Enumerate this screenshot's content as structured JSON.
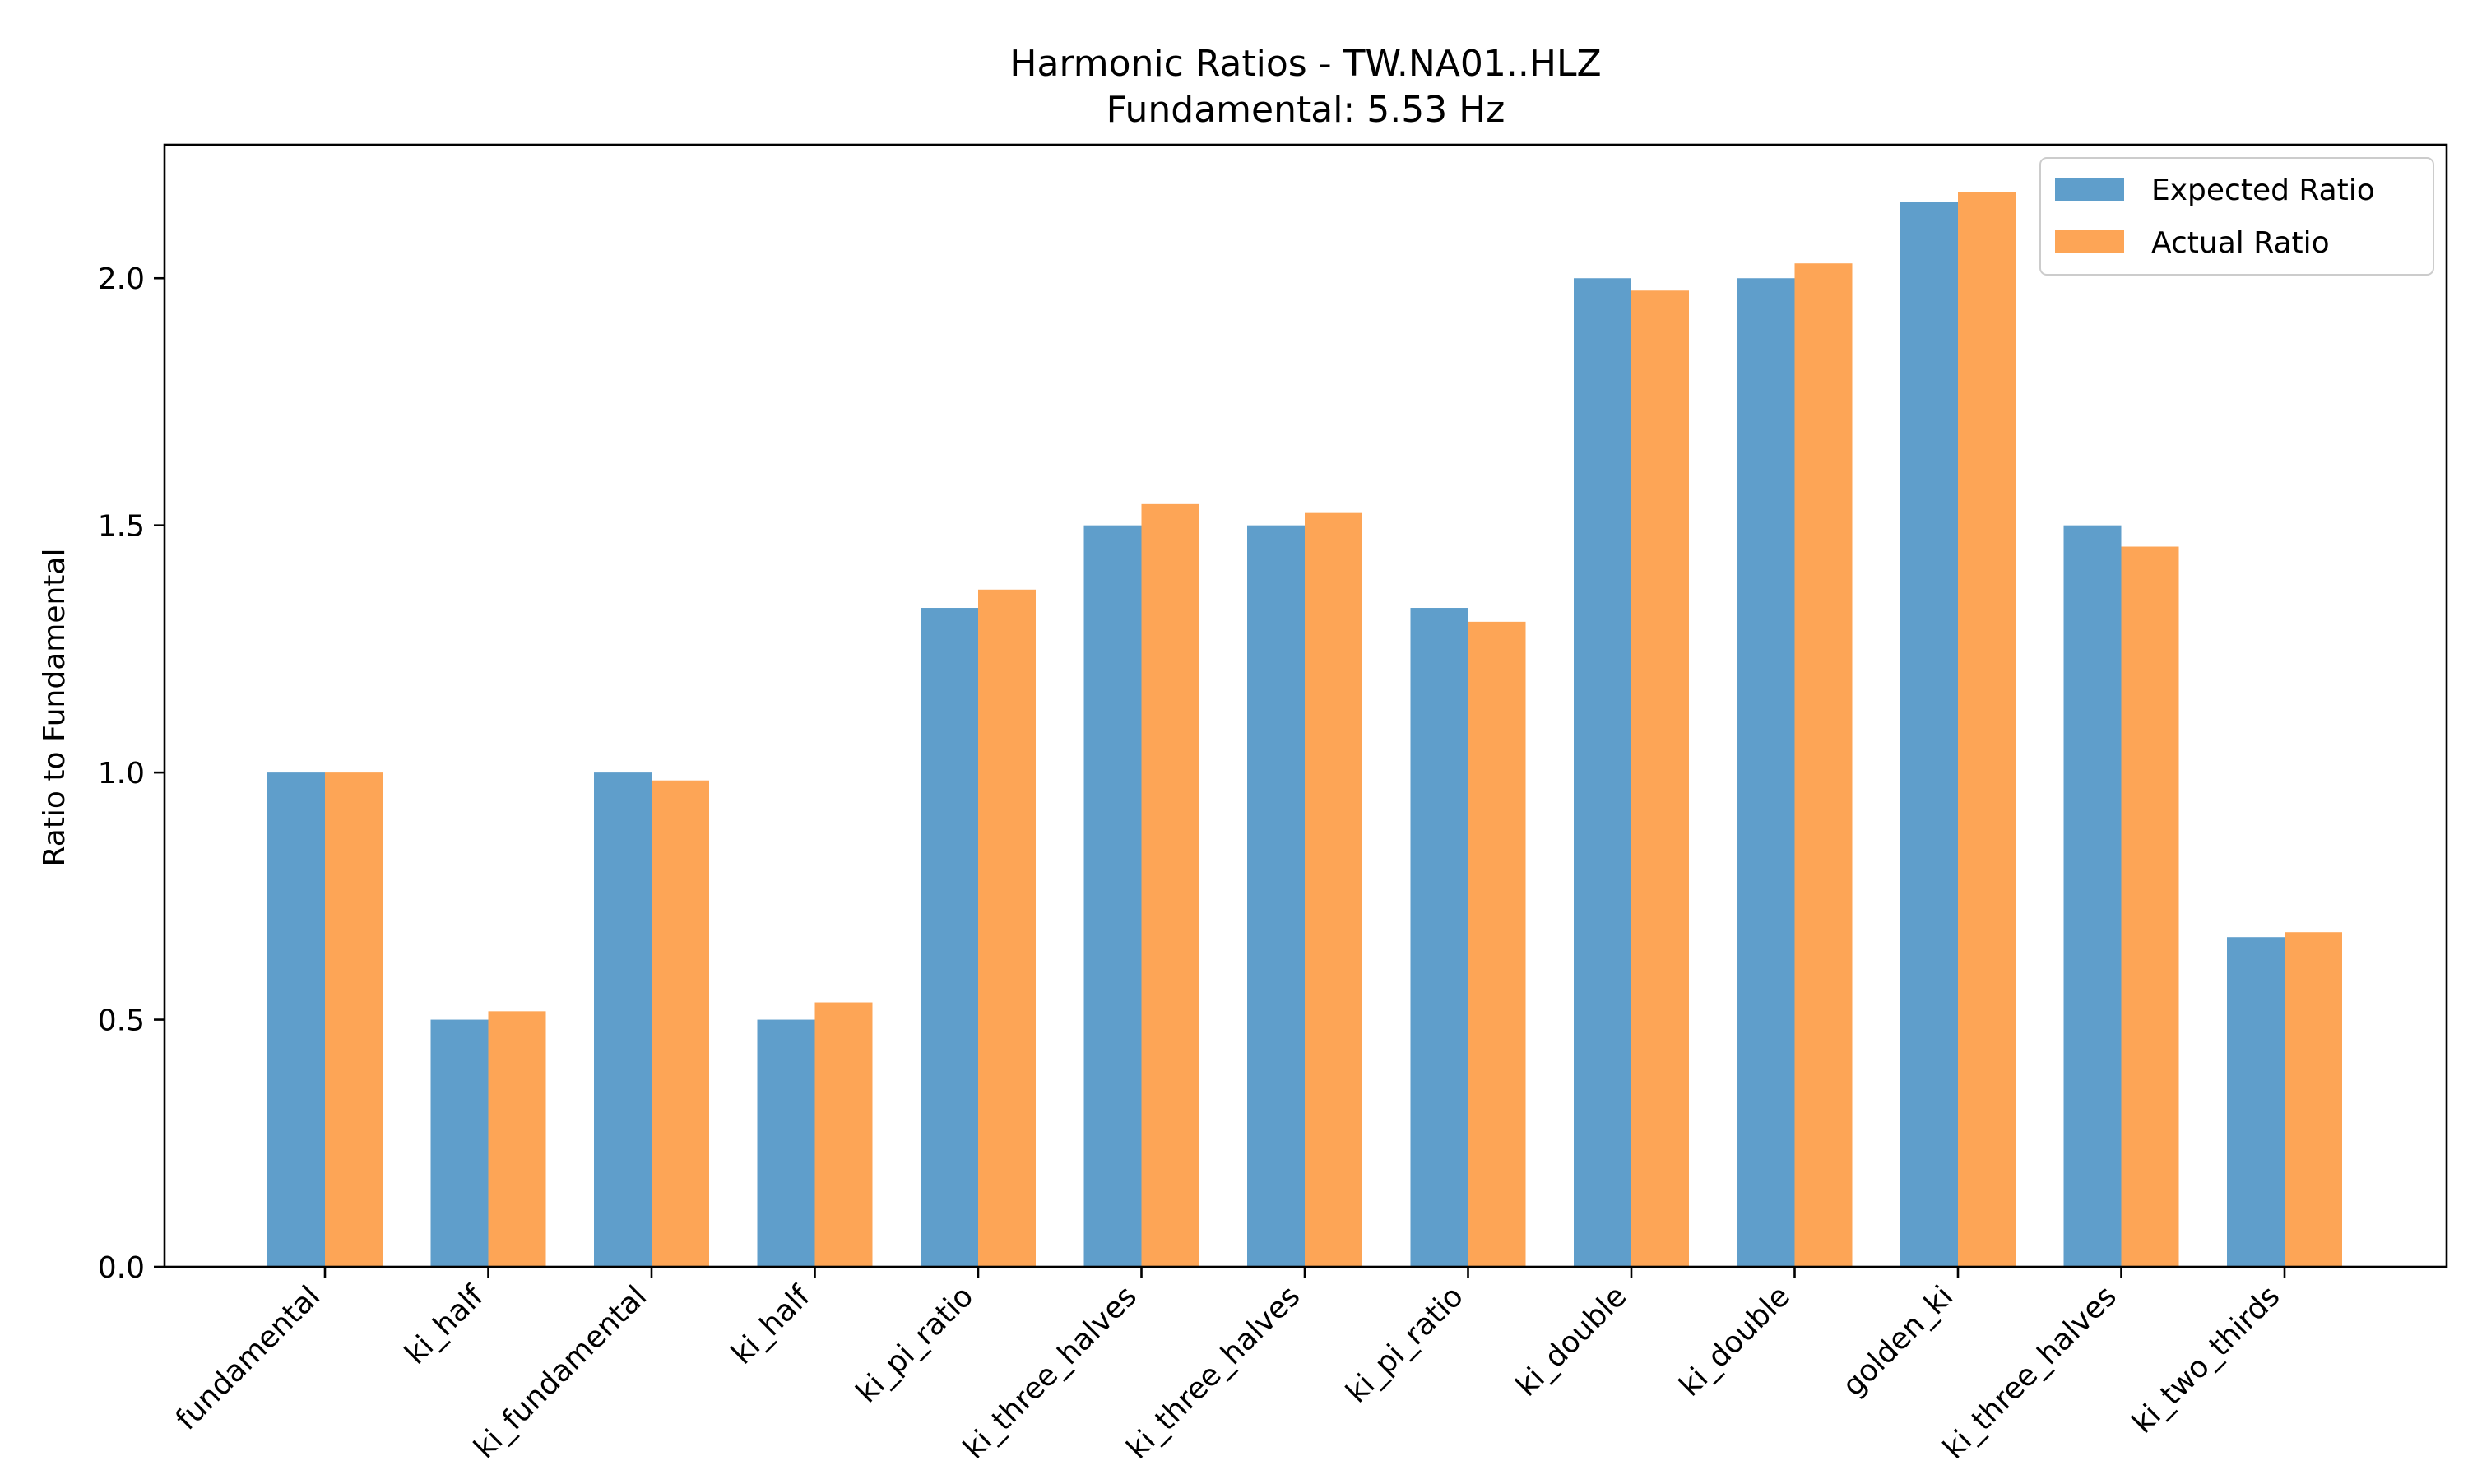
{
  "chart_data": {
    "type": "bar",
    "title": "Harmonic Ratios - TW.NA01..HLZ",
    "subtitle": "Fundamental: 5.53 Hz",
    "xlabel": "",
    "ylabel": "Ratio to Fundamental",
    "ylim": [
      0,
      2.27
    ],
    "yticks": [
      0.0,
      0.5,
      1.0,
      1.5,
      2.0
    ],
    "ytick_labels": [
      "0.0",
      "0.5",
      "1.0",
      "1.5",
      "2.0"
    ],
    "grid": false,
    "legend_position": "top-right",
    "categories": [
      "fundamental",
      "ki_half",
      "ki_fundamental",
      "ki_half",
      "ki_pi_ratio",
      "ki_three_halves",
      "ki_three_halves",
      "ki_pi_ratio",
      "ki_double",
      "ki_double",
      "golden_ki",
      "ki_three_halves",
      "ki_two_thirds"
    ],
    "series": [
      {
        "name": "Expected Ratio",
        "color": "#5f9ecb",
        "values": [
          1.0,
          0.5,
          1.0,
          0.5,
          1.333,
          1.5,
          1.5,
          1.333,
          2.0,
          2.0,
          2.154,
          1.5,
          0.667
        ]
      },
      {
        "name": "Actual Ratio",
        "color": "#fda556",
        "values": [
          1.0,
          0.517,
          0.984,
          0.535,
          1.37,
          1.543,
          1.525,
          1.305,
          1.975,
          2.03,
          2.175,
          1.457,
          0.677
        ]
      }
    ]
  }
}
